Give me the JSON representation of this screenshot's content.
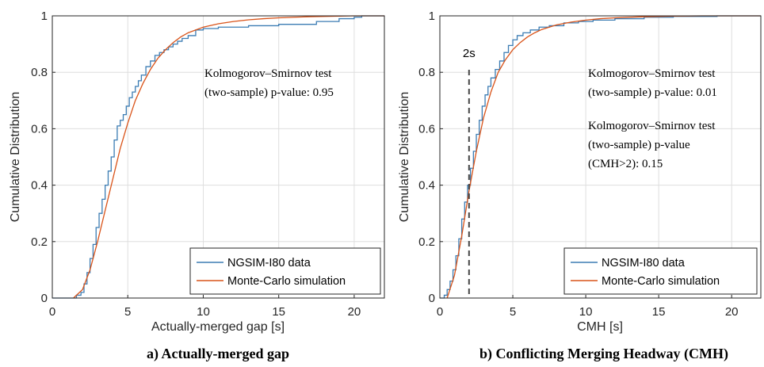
{
  "chart_data": [
    {
      "type": "line",
      "caption": "a) Actually-merged gap",
      "xlabel": "Actually-merged gap [s]",
      "ylabel": "Cumulative Distribution",
      "xlim": [
        0,
        22
      ],
      "ylim": [
        0,
        1
      ],
      "xticks": [
        "0",
        "5",
        "10",
        "15",
        "20"
      ],
      "yticks": [
        "0",
        "0.2",
        "0.4",
        "0.6",
        "0.8",
        "1"
      ],
      "grid": true,
      "legend_position": "bottom-right",
      "annotation": [
        "Kolmogorov–Smirnov test",
        "(two-sample) p-value: 0.95"
      ],
      "series": [
        {
          "name": "NGSIM-I80 data",
          "color": "#3b7cb3",
          "step": true,
          "x": [
            0,
            1.3,
            1.6,
            1.9,
            2.1,
            2.3,
            2.5,
            2.7,
            2.9,
            3.1,
            3.3,
            3.5,
            3.7,
            3.9,
            4.1,
            4.3,
            4.5,
            4.7,
            4.9,
            5.1,
            5.3,
            5.5,
            5.7,
            5.9,
            6.2,
            6.5,
            6.8,
            7.1,
            7.4,
            7.7,
            8.0,
            8.3,
            8.6,
            9.0,
            9.5,
            10.0,
            11.0,
            12.0,
            13.0,
            15.0,
            17.5,
            19.0,
            20.0,
            20.5,
            22
          ],
          "y": [
            0,
            0,
            0.01,
            0.02,
            0.05,
            0.09,
            0.14,
            0.19,
            0.25,
            0.3,
            0.35,
            0.4,
            0.45,
            0.5,
            0.56,
            0.61,
            0.63,
            0.65,
            0.68,
            0.71,
            0.73,
            0.75,
            0.77,
            0.79,
            0.82,
            0.84,
            0.86,
            0.87,
            0.88,
            0.89,
            0.9,
            0.91,
            0.92,
            0.93,
            0.95,
            0.955,
            0.96,
            0.96,
            0.965,
            0.97,
            0.98,
            0.99,
            0.995,
            1.0,
            1.0
          ]
        },
        {
          "name": "Monte-Carlo simulation",
          "color": "#d95319",
          "step": false,
          "x": [
            1.4,
            2.0,
            2.5,
            3.0,
            3.5,
            4.0,
            4.5,
            5.0,
            5.5,
            6.0,
            6.5,
            7.0,
            7.5,
            8.0,
            8.5,
            9.0,
            10.0,
            11.0,
            12.0,
            13.0,
            14.0,
            15.0,
            16.0,
            17.0,
            18.0,
            19.0,
            20.0,
            21.0,
            22.0
          ],
          "y": [
            0,
            0.03,
            0.1,
            0.2,
            0.31,
            0.42,
            0.53,
            0.62,
            0.7,
            0.76,
            0.81,
            0.85,
            0.88,
            0.905,
            0.925,
            0.94,
            0.96,
            0.972,
            0.98,
            0.986,
            0.99,
            0.993,
            0.995,
            0.997,
            0.998,
            0.999,
            1.0,
            1.0,
            1.0
          ]
        }
      ]
    },
    {
      "type": "line",
      "caption": "b) Conflicting Merging Headway (CMH)",
      "xlabel": "CMH [s]",
      "ylabel": "Cumulative Distribution",
      "xlim": [
        0,
        22
      ],
      "ylim": [
        0,
        1
      ],
      "xticks": [
        "0",
        "5",
        "10",
        "15",
        "20"
      ],
      "yticks": [
        "0",
        "0.2",
        "0.4",
        "0.6",
        "0.8",
        "1"
      ],
      "grid": true,
      "legend_position": "bottom-right",
      "vline": {
        "x": 2,
        "label": "2s",
        "color": "#444444"
      },
      "annotation": [
        "Kolmogorov–Smirnov test",
        "(two-sample) p-value: 0.01"
      ],
      "annotation2": [
        "Kolmogorov–Smirnov test",
        "(two-sample) p-value",
        "(CMH>2): 0.15"
      ],
      "series": [
        {
          "name": "NGSIM-I80 data",
          "color": "#3b7cb3",
          "step": true,
          "x": [
            0,
            0.3,
            0.5,
            0.7,
            0.9,
            1.1,
            1.3,
            1.5,
            1.7,
            1.9,
            2.1,
            2.3,
            2.5,
            2.7,
            2.9,
            3.1,
            3.3,
            3.5,
            3.8,
            4.1,
            4.4,
            4.7,
            5.0,
            5.3,
            5.7,
            6.2,
            6.8,
            7.5,
            8.5,
            9.5,
            10.5,
            12.0,
            14.0,
            16.0,
            19.0,
            22
          ],
          "y": [
            0,
            0.01,
            0.03,
            0.06,
            0.1,
            0.15,
            0.21,
            0.28,
            0.34,
            0.4,
            0.46,
            0.52,
            0.58,
            0.63,
            0.68,
            0.72,
            0.75,
            0.78,
            0.81,
            0.84,
            0.87,
            0.895,
            0.915,
            0.93,
            0.94,
            0.95,
            0.96,
            0.965,
            0.975,
            0.98,
            0.985,
            0.99,
            0.995,
            0.998,
            1.0,
            1.0
          ]
        },
        {
          "name": "Monte-Carlo simulation",
          "color": "#d95319",
          "step": false,
          "x": [
            0.5,
            1.0,
            1.5,
            2.0,
            2.5,
            3.0,
            3.5,
            4.0,
            4.5,
            5.0,
            5.5,
            6.0,
            6.5,
            7.0,
            8.0,
            9.0,
            10.0,
            11.0,
            12.0,
            13.0,
            14.0,
            15.0,
            16.0,
            17.0,
            18.0,
            19.0,
            20.0,
            22.0
          ],
          "y": [
            0,
            0.08,
            0.22,
            0.38,
            0.52,
            0.64,
            0.73,
            0.8,
            0.845,
            0.88,
            0.905,
            0.925,
            0.94,
            0.952,
            0.968,
            0.978,
            0.985,
            0.99,
            0.993,
            0.995,
            0.997,
            0.998,
            0.999,
            0.9995,
            1.0,
            1.0,
            1.0,
            1.0
          ]
        }
      ]
    }
  ]
}
